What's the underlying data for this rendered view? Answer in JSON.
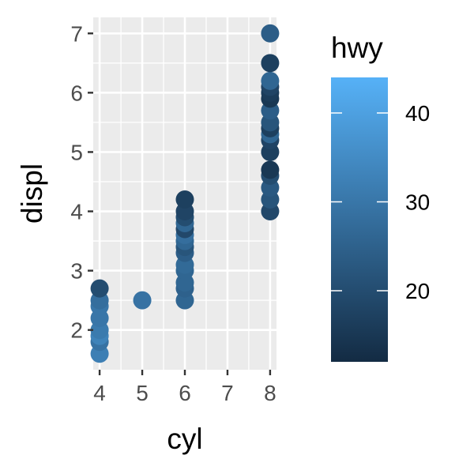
{
  "chart_data": {
    "type": "scatter",
    "title": "",
    "xlabel": "cyl",
    "ylabel": "displ",
    "xlim": [
      3.85,
      8.15
    ],
    "ylim": [
      1.33,
      7.27
    ],
    "xticks": [
      4,
      5,
      6,
      7,
      8
    ],
    "yticks": [
      2,
      3,
      4,
      5,
      6,
      7
    ],
    "grid": true,
    "panel_background": "#ebebeb",
    "color_scale": {
      "name": "hwy",
      "min": 12,
      "max": 44,
      "low_color": "#132b43",
      "high_color": "#56b1f7",
      "ticks": [
        20,
        30,
        40
      ],
      "legend_position": "right"
    },
    "points": [
      {
        "x": 4,
        "y": 1.6,
        "hwy": 32
      },
      {
        "x": 4,
        "y": 1.8,
        "hwy": 29
      },
      {
        "x": 4,
        "y": 1.9,
        "hwy": 33
      },
      {
        "x": 4,
        "y": 2.0,
        "hwy": 31
      },
      {
        "x": 4,
        "y": 2.2,
        "hwy": 30
      },
      {
        "x": 4,
        "y": 2.4,
        "hwy": 30
      },
      {
        "x": 4,
        "y": 2.5,
        "hwy": 28
      },
      {
        "x": 4,
        "y": 2.7,
        "hwy": 20
      },
      {
        "x": 5,
        "y": 2.5,
        "hwy": 29
      },
      {
        "x": 6,
        "y": 2.5,
        "hwy": 26
      },
      {
        "x": 6,
        "y": 2.7,
        "hwy": 25
      },
      {
        "x": 6,
        "y": 2.8,
        "hwy": 26
      },
      {
        "x": 6,
        "y": 3.0,
        "hwy": 26
      },
      {
        "x": 6,
        "y": 3.1,
        "hwy": 27
      },
      {
        "x": 6,
        "y": 3.3,
        "hwy": 24
      },
      {
        "x": 6,
        "y": 3.4,
        "hwy": 22
      },
      {
        "x": 6,
        "y": 3.5,
        "hwy": 26
      },
      {
        "x": 6,
        "y": 3.6,
        "hwy": 28
      },
      {
        "x": 6,
        "y": 3.7,
        "hwy": 19
      },
      {
        "x": 6,
        "y": 3.8,
        "hwy": 26
      },
      {
        "x": 6,
        "y": 3.9,
        "hwy": 20
      },
      {
        "x": 6,
        "y": 4.0,
        "hwy": 18
      },
      {
        "x": 6,
        "y": 4.2,
        "hwy": 17
      },
      {
        "x": 8,
        "y": 4.0,
        "hwy": 19
      },
      {
        "x": 8,
        "y": 4.2,
        "hwy": 22
      },
      {
        "x": 8,
        "y": 4.4,
        "hwy": 23
      },
      {
        "x": 8,
        "y": 4.6,
        "hwy": 20
      },
      {
        "x": 8,
        "y": 4.7,
        "hwy": 15
      },
      {
        "x": 8,
        "y": 5.0,
        "hwy": 17
      },
      {
        "x": 8,
        "y": 5.2,
        "hwy": 18
      },
      {
        "x": 8,
        "y": 5.3,
        "hwy": 26
      },
      {
        "x": 8,
        "y": 5.4,
        "hwy": 17
      },
      {
        "x": 8,
        "y": 5.5,
        "hwy": 22
      },
      {
        "x": 8,
        "y": 5.7,
        "hwy": 24
      },
      {
        "x": 8,
        "y": 5.9,
        "hwy": 15
      },
      {
        "x": 8,
        "y": 6.0,
        "hwy": 16
      },
      {
        "x": 8,
        "y": 6.1,
        "hwy": 18
      },
      {
        "x": 8,
        "y": 6.2,
        "hwy": 26
      },
      {
        "x": 8,
        "y": 6.5,
        "hwy": 17
      },
      {
        "x": 8,
        "y": 7.0,
        "hwy": 24
      }
    ]
  }
}
